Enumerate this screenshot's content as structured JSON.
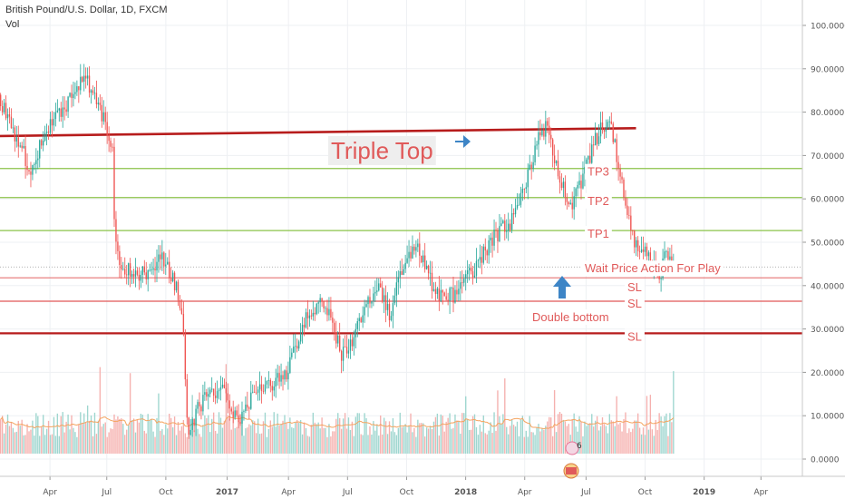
{
  "header": {
    "symbol": "British Pound/U.S. Dollar, 1D, FXCM",
    "volume_label": "Vol"
  },
  "colors": {
    "bull": "#26a69a",
    "bear": "#ef5350",
    "vol_bull": "#9ed6cf",
    "vol_bear": "#f5b0ae",
    "resistance": "#b71c1c",
    "tp_line": "#8bc34a",
    "sl_line": "#e57373",
    "annotation_text": "#e05a5a",
    "arrow": "#3d85c6",
    "grid": "#eef0f3",
    "axis_text": "#555555"
  },
  "annotations": {
    "triple_top": "Triple Top",
    "tp3": "TP3",
    "tp2": "TP2",
    "tp1": "TP1",
    "wait": "Wait Price Action For Play",
    "sl1": "SL",
    "sl2": "SL",
    "sl3": "SL",
    "double_bottom": "Double bottom",
    "badge_count": "6"
  },
  "chart_data": {
    "type": "candlestick",
    "title": "British Pound/U.S. Dollar, 1D, FXCM",
    "x_axis_labels": [
      "Apr",
      "Jul",
      "Oct",
      "2017",
      "Apr",
      "Jul",
      "Oct",
      "2018",
      "Apr",
      "Jul",
      "Oct",
      "2019",
      "Apr"
    ],
    "y_axis_labels": [
      "100.0000",
      "90.0000",
      "80.0000",
      "70.0000",
      "60.0000",
      "50.0000",
      "40.0000",
      "30.0000",
      "20.0000",
      "10.0000",
      "0.0000"
    ],
    "ylim": [
      -3,
      103
    ],
    "grid": true,
    "price_path": [
      [
        0.0,
        84
      ],
      [
        0.03,
        76
      ],
      [
        0.07,
        67
      ],
      [
        0.1,
        74
      ],
      [
        0.13,
        80
      ],
      [
        0.17,
        84
      ],
      [
        0.19,
        89
      ],
      [
        0.21,
        83
      ],
      [
        0.235,
        77
      ],
      [
        0.25,
        72
      ],
      [
        0.255,
        50
      ],
      [
        0.27,
        44
      ],
      [
        0.31,
        42
      ],
      [
        0.36,
        47
      ],
      [
        0.39,
        40
      ],
      [
        0.405,
        32
      ],
      [
        0.415,
        6
      ],
      [
        0.45,
        14
      ],
      [
        0.49,
        17
      ],
      [
        0.525,
        9
      ],
      [
        0.57,
        16
      ],
      [
        0.63,
        19
      ],
      [
        0.68,
        34
      ],
      [
        0.72,
        36
      ],
      [
        0.755,
        24
      ],
      [
        0.79,
        30
      ],
      [
        0.83,
        40
      ],
      [
        0.86,
        33
      ],
      [
        0.88,
        42
      ],
      [
        0.92,
        50
      ],
      [
        0.96,
        38
      ],
      [
        1.0,
        38
      ],
      [
        1.05,
        44
      ],
      [
        1.08,
        50
      ],
      [
        1.13,
        55
      ],
      [
        1.16,
        63
      ],
      [
        1.18,
        72
      ],
      [
        1.205,
        77
      ],
      [
        1.22,
        70
      ],
      [
        1.24,
        63
      ],
      [
        1.26,
        59
      ],
      [
        1.29,
        66
      ],
      [
        1.31,
        73
      ],
      [
        1.33,
        77
      ],
      [
        1.345,
        79
      ],
      [
        1.36,
        70
      ],
      [
        1.38,
        59
      ],
      [
        1.4,
        50
      ],
      [
        1.43,
        46
      ],
      [
        1.455,
        42
      ],
      [
        1.47,
        48
      ],
      [
        1.485,
        44
      ]
    ],
    "volume_series": [
      {
        "name": "volume",
        "style": "bars"
      },
      {
        "name": "volume MA",
        "style": "line",
        "color": "#f4a460"
      }
    ],
    "levels": {
      "resistance": {
        "type": "trendline",
        "from": [
          0.0,
          74.5
        ],
        "to": [
          1.4,
          76.3
        ]
      },
      "TP3": 67.0,
      "TP2": 60.3,
      "TP1": 52.7,
      "entry": 44.3,
      "SL1": 41.8,
      "SL2": 36.4,
      "SL3": 29.0
    }
  }
}
